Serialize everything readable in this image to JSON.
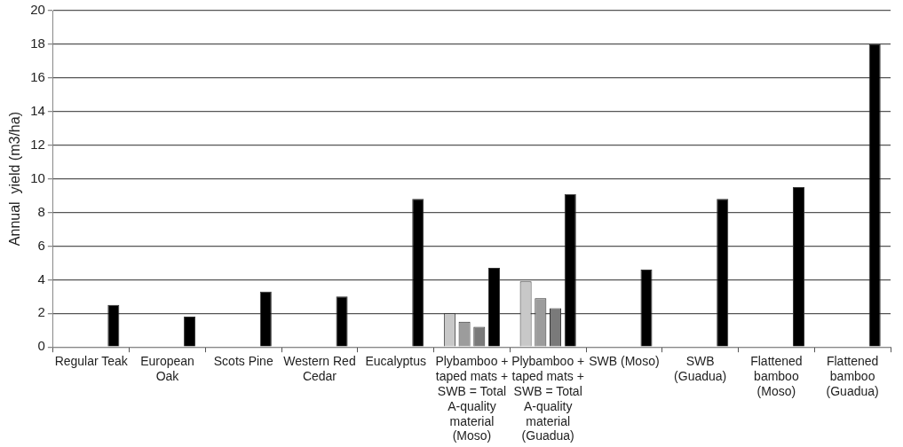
{
  "chart_data": {
    "type": "bar",
    "ylabel": "Annual  yield (m3/ha)",
    "categories": [
      "Regular Teak",
      "European Oak",
      "Scots Pine",
      "Western Red Cedar",
      "Eucalyptus",
      "Plybamboo + taped mats + SWB = Total A-quality material (Moso)",
      "Plybamboo + taped mats + SWB = Total A-quality material (Guadua)",
      "SWB (Moso)",
      "SWB (Guadua)",
      "Flattened bamboo (Moso)",
      "Flattened bamboo (Guadua)"
    ],
    "series": [
      {
        "color": "#c8c8c8",
        "values": [
          null,
          null,
          null,
          null,
          null,
          2.0,
          3.9,
          null,
          null,
          null,
          null
        ]
      },
      {
        "color": "#9c9c9c",
        "values": [
          null,
          null,
          null,
          null,
          null,
          1.5,
          2.9,
          null,
          null,
          null,
          null
        ]
      },
      {
        "color": "#7a7a7a",
        "values": [
          null,
          null,
          null,
          null,
          null,
          1.2,
          2.3,
          null,
          null,
          null,
          null
        ]
      },
      {
        "color": "#000000",
        "values": [
          2.5,
          1.8,
          3.3,
          3.0,
          8.8,
          4.7,
          9.1,
          4.6,
          8.8,
          9.5,
          18.0
        ]
      }
    ],
    "ylim": [
      0,
      20
    ],
    "yticks": [
      0,
      2,
      4,
      6,
      8,
      10,
      12,
      14,
      16,
      18,
      20
    ],
    "grid": "y",
    "legend": false
  }
}
